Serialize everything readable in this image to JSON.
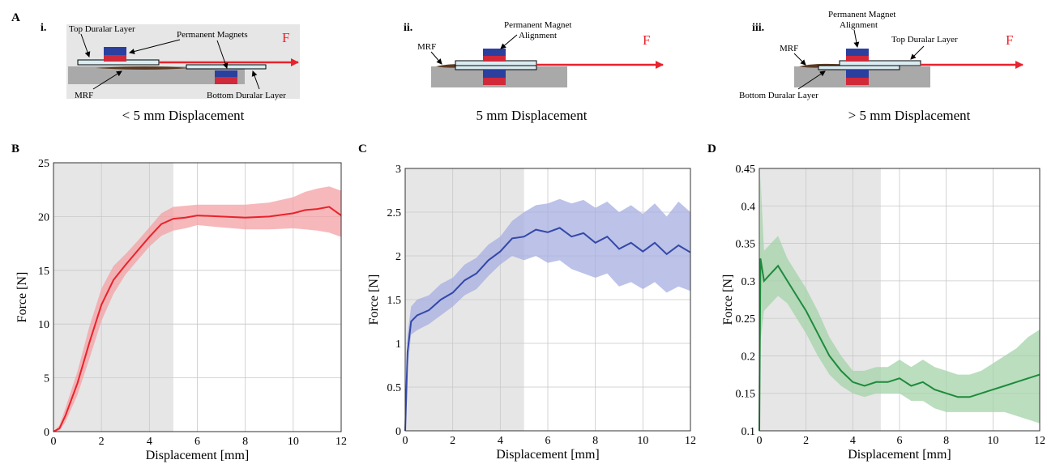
{
  "panel_letters": {
    "A": "A",
    "B": "B",
    "C": "C",
    "D": "D"
  },
  "schematics": [
    {
      "numeral": "i.",
      "caption": "< 5 mm Displacement",
      "labels": {
        "top_layer": "Top Duralar Layer",
        "magnets": "Permanent Magnets",
        "mrf": "MRF",
        "bottom_layer": "Bottom Duralar Layer",
        "force": "F"
      }
    },
    {
      "numeral": "ii.",
      "caption": "5 mm Displacement",
      "labels": {
        "magnet_line1": "Permanent Magnet",
        "magnet_line2": "Alignment",
        "mrf": "MRF",
        "force": "F"
      }
    },
    {
      "numeral": "iii.",
      "caption": "> 5 mm Displacement",
      "labels": {
        "magnet_line1": "Permanent Magnet",
        "magnet_line2": "Alignment",
        "top_layer": "Top Duralar Layer",
        "mrf": "MRF",
        "bottom_layer": "Bottom Duralar Layer",
        "force": "F"
      }
    }
  ],
  "colors": {
    "magnet_blue": "#2b3f9e",
    "magnet_red": "#d0293a",
    "layer_fill": "#d9ecf2",
    "base_gray": "#a9a9a9",
    "arrow_red": "#e8232b",
    "mrf_brown": "#5a3a22",
    "shade_gray": "#e6e6e6"
  },
  "chart_data": [
    {
      "type": "line",
      "panel": "B",
      "xlabel": "Displacement [mm]",
      "ylabel": "Force [N]",
      "xlim": [
        0,
        12
      ],
      "ylim": [
        0,
        25
      ],
      "xticks": [
        0,
        2,
        4,
        6,
        8,
        10,
        12
      ],
      "yticks": [
        0,
        5,
        10,
        15,
        20,
        25
      ],
      "grid": true,
      "shaded_region_x": [
        0,
        5
      ],
      "color": "#e8232b",
      "band_color": "#f4a0a4",
      "series": [
        {
          "x": [
            0,
            0.25,
            0.5,
            1,
            1.5,
            2,
            2.5,
            3,
            3.5,
            4,
            4.5,
            5,
            5.5,
            6,
            7,
            8,
            9,
            10,
            10.5,
            11,
            11.5,
            12
          ],
          "y": [
            0,
            0.3,
            1.5,
            4.5,
            8.3,
            11.8,
            14.1,
            15.5,
            16.8,
            18.1,
            19.3,
            19.8,
            19.9,
            20.1,
            20.0,
            19.9,
            20.0,
            20.3,
            20.6,
            20.7,
            20.9,
            20.1
          ],
          "lower": [
            0,
            0.1,
            0.9,
            3.4,
            6.8,
            10.3,
            12.8,
            14.6,
            15.9,
            17.2,
            18.2,
            18.7,
            18.9,
            19.2,
            19.0,
            18.8,
            18.8,
            18.9,
            18.8,
            18.7,
            18.5,
            18.1
          ],
          "upper": [
            0,
            0.6,
            2.2,
            5.6,
            9.8,
            13.3,
            15.4,
            16.5,
            17.7,
            19.0,
            20.3,
            20.9,
            21.0,
            21.1,
            21.1,
            21.1,
            21.3,
            21.8,
            22.3,
            22.6,
            22.8,
            22.4
          ]
        }
      ]
    },
    {
      "type": "line",
      "panel": "C",
      "xlabel": "Displacement [mm]",
      "ylabel": "Force [N]",
      "xlim": [
        0,
        12
      ],
      "ylim": [
        0,
        3
      ],
      "xticks": [
        0,
        2,
        4,
        6,
        8,
        10,
        12
      ],
      "yticks": [
        0,
        0.5,
        1,
        1.5,
        2,
        2.5,
        3
      ],
      "grid": true,
      "shaded_region_x": [
        0,
        5
      ],
      "color": "#3448a8",
      "band_color": "#a6aee0",
      "series": [
        {
          "x": [
            0,
            0.1,
            0.25,
            0.5,
            1,
            1.5,
            2,
            2.5,
            3,
            3.5,
            4,
            4.5,
            5,
            5.5,
            6,
            6.5,
            7,
            7.5,
            8,
            8.5,
            9,
            9.5,
            10,
            10.5,
            11,
            11.5,
            12
          ],
          "y": [
            0,
            0.9,
            1.25,
            1.32,
            1.38,
            1.5,
            1.58,
            1.72,
            1.8,
            1.95,
            2.05,
            2.2,
            2.22,
            2.3,
            2.27,
            2.32,
            2.22,
            2.26,
            2.15,
            2.22,
            2.08,
            2.15,
            2.05,
            2.15,
            2.02,
            2.12,
            2.04
          ],
          "lower": [
            0,
            0.7,
            1.1,
            1.15,
            1.22,
            1.32,
            1.42,
            1.55,
            1.62,
            1.77,
            1.9,
            2.0,
            1.95,
            2.0,
            1.92,
            1.95,
            1.85,
            1.8,
            1.75,
            1.8,
            1.65,
            1.7,
            1.62,
            1.7,
            1.58,
            1.65,
            1.6
          ],
          "upper": [
            0,
            1.1,
            1.42,
            1.5,
            1.55,
            1.68,
            1.75,
            1.9,
            1.98,
            2.13,
            2.22,
            2.4,
            2.5,
            2.58,
            2.6,
            2.65,
            2.6,
            2.64,
            2.55,
            2.62,
            2.5,
            2.58,
            2.48,
            2.6,
            2.45,
            2.62,
            2.5
          ]
        }
      ]
    },
    {
      "type": "line",
      "panel": "D",
      "xlabel": "Displacement [mm]",
      "ylabel": "Force [N]",
      "xlim": [
        0,
        12
      ],
      "ylim": [
        0.1,
        0.45
      ],
      "xticks": [
        0,
        2,
        4,
        6,
        8,
        10,
        12
      ],
      "yticks": [
        0.1,
        0.15,
        0.2,
        0.25,
        0.3,
        0.35,
        0.4,
        0.45
      ],
      "grid": true,
      "shaded_region_x": [
        0,
        5.2
      ],
      "color": "#1e8a3c",
      "band_color": "#a3d3a8",
      "series": [
        {
          "x": [
            0,
            0.05,
            0.2,
            0.5,
            0.8,
            1.2,
            1.6,
            2,
            2.5,
            3,
            3.5,
            4,
            4.5,
            5,
            5.5,
            6,
            6.5,
            7,
            7.5,
            8,
            8.5,
            9,
            9.5,
            10,
            10.5,
            11,
            11.5,
            12
          ],
          "y": [
            0.1,
            0.33,
            0.3,
            0.31,
            0.32,
            0.3,
            0.28,
            0.26,
            0.23,
            0.2,
            0.18,
            0.165,
            0.16,
            0.165,
            0.165,
            0.17,
            0.16,
            0.165,
            0.155,
            0.15,
            0.145,
            0.145,
            0.15,
            0.155,
            0.16,
            0.165,
            0.17,
            0.175
          ],
          "lower": [
            0.1,
            0.22,
            0.26,
            0.27,
            0.28,
            0.27,
            0.25,
            0.23,
            0.2,
            0.175,
            0.16,
            0.15,
            0.145,
            0.15,
            0.15,
            0.15,
            0.14,
            0.14,
            0.13,
            0.125,
            0.125,
            0.125,
            0.125,
            0.125,
            0.125,
            0.12,
            0.115,
            0.11
          ],
          "upper": [
            0.1,
            0.44,
            0.34,
            0.35,
            0.36,
            0.33,
            0.31,
            0.29,
            0.26,
            0.225,
            0.2,
            0.18,
            0.18,
            0.185,
            0.185,
            0.195,
            0.185,
            0.195,
            0.185,
            0.18,
            0.175,
            0.175,
            0.18,
            0.19,
            0.2,
            0.21,
            0.225,
            0.235
          ]
        }
      ]
    }
  ]
}
